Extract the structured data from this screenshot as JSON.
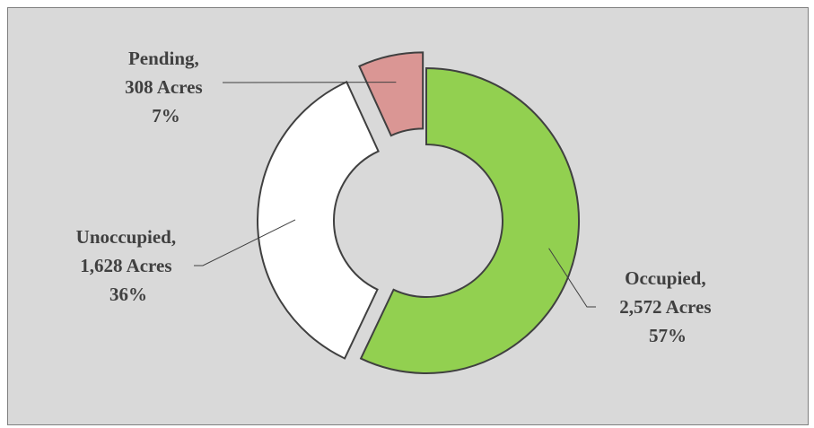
{
  "chart_data": {
    "type": "donut",
    "title": "",
    "unit": "Acres",
    "slices": [
      {
        "name": "Occupied",
        "value_text": "2,572  Acres",
        "value": 2572,
        "percent_text": "57%",
        "color": "#92d050",
        "exploded": false
      },
      {
        "name": "Unoccupied",
        "value_text": "1,628  Acres",
        "value": 1628,
        "percent_text": "36%",
        "color": "#ffffff",
        "exploded": true
      },
      {
        "name": "Pending",
        "value_text": "308 Acres",
        "value": 308,
        "percent_text": "7%",
        "color": "#da9694",
        "exploded": true
      }
    ],
    "labels": [
      {
        "line1": "Occupied,",
        "line2": "2,572  Acres",
        "line3": "57%"
      },
      {
        "line1": "Unoccupied,",
        "line2": "1,628  Acres",
        "line3": "36%"
      },
      {
        "line1": "Pending,",
        "line2": "308 Acres",
        "line3": "7%"
      }
    ],
    "legend": "none",
    "grid": false
  }
}
